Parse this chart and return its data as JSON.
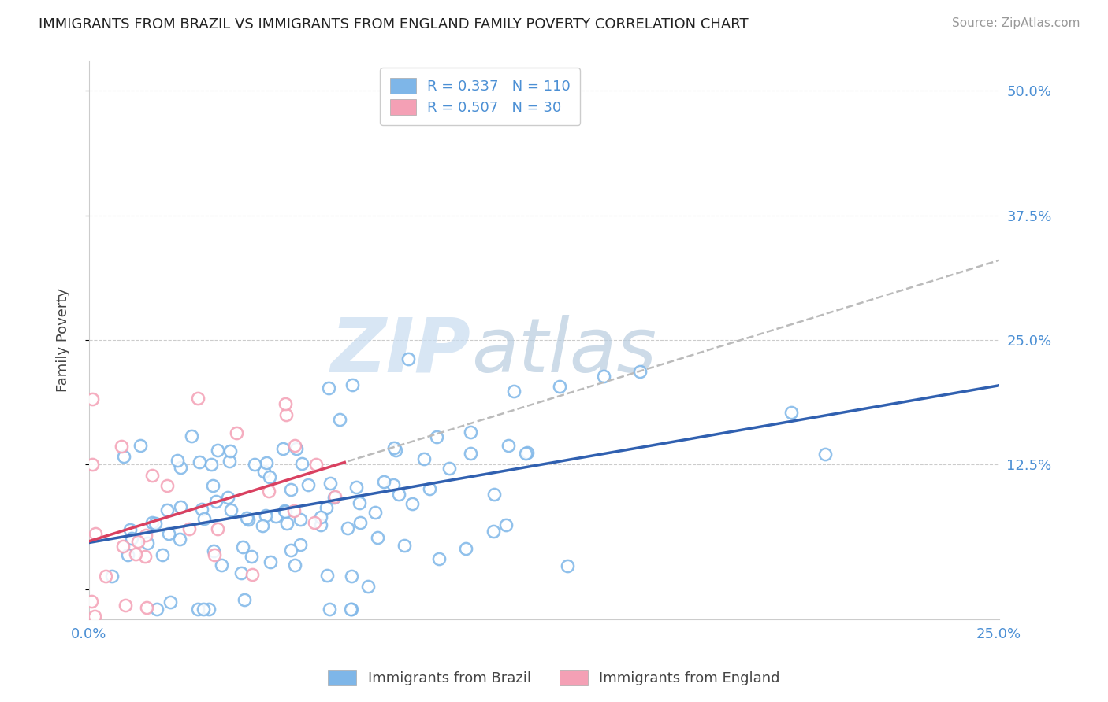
{
  "title": "IMMIGRANTS FROM BRAZIL VS IMMIGRANTS FROM ENGLAND FAMILY POVERTY CORRELATION CHART",
  "source": "Source: ZipAtlas.com",
  "ylabel": "Family Poverty",
  "brazil_R": 0.337,
  "brazil_N": 110,
  "england_R": 0.507,
  "england_N": 30,
  "brazil_dot_color": "#7EB6E8",
  "england_dot_color": "#F4A0B5",
  "brazil_line_color": "#3060B0",
  "england_line_color": "#D94060",
  "england_dash_color": "#BBBBBB",
  "watermark_zip": "ZIP",
  "watermark_atlas": "atlas",
  "watermark_color": "#C0D4E8",
  "legend_brazil_label": "Immigrants from Brazil",
  "legend_england_label": "Immigrants from England",
  "xlim": [
    0.0,
    0.25
  ],
  "ylim": [
    -0.03,
    0.53
  ],
  "ytick_vals": [
    0.0,
    0.125,
    0.25,
    0.375,
    0.5
  ],
  "xtick_vals": [
    0.0,
    0.25
  ],
  "tick_color": "#4B8FD4",
  "grid_color": "#CCCCCC",
  "title_fontsize": 13,
  "source_fontsize": 11,
  "tick_fontsize": 13,
  "ylabel_fontsize": 13,
  "brazil_seed": 42,
  "england_seed": 7
}
